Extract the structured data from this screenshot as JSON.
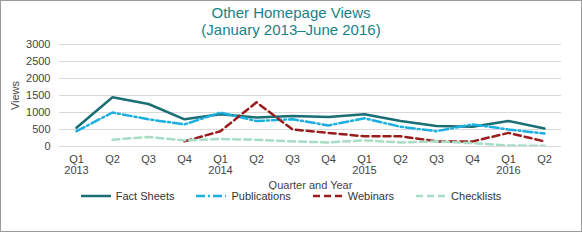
{
  "chart_data": {
    "type": "line",
    "title": "Other Homepage Views",
    "subtitle": "(January 2013–June 2016)",
    "x_label": "Quarter and Year",
    "y_label": "Views",
    "categories": [
      "Q1 2013",
      "Q2",
      "Q3",
      "Q4",
      "Q1 2014",
      "Q2",
      "Q3",
      "Q4",
      "Q1 2015",
      "Q2",
      "Q3",
      "Q4",
      "Q1 2016",
      "Q2"
    ],
    "series": [
      {
        "name": "Fact Sheets",
        "color": "#1a6f74",
        "line_style": "solid",
        "values": [
          550,
          1450,
          1250,
          800,
          950,
          850,
          900,
          870,
          950,
          750,
          600,
          580,
          750,
          530
        ]
      },
      {
        "name": "Publications",
        "color": "#1bb0e0",
        "line_style": "dashdot",
        "values": [
          450,
          1000,
          800,
          650,
          1000,
          750,
          800,
          620,
          830,
          580,
          450,
          650,
          500,
          380
        ]
      },
      {
        "name": "Webinars",
        "color": "#9b1c1c",
        "line_style": "dashed",
        "values": [
          null,
          null,
          null,
          150,
          450,
          1300,
          500,
          400,
          300,
          300,
          150,
          150,
          400,
          150
        ]
      },
      {
        "name": "Checklists",
        "color": "#a8dcc4",
        "line_style": "dashed",
        "values": [
          null,
          200,
          280,
          180,
          220,
          200,
          150,
          120,
          180,
          120,
          150,
          100,
          30,
          20
        ]
      }
    ],
    "ylim": [
      0,
      3000
    ],
    "yticks": [
      0,
      500,
      1000,
      1500,
      2000,
      2500,
      3000
    ],
    "grid": true,
    "legend": "bottom"
  }
}
